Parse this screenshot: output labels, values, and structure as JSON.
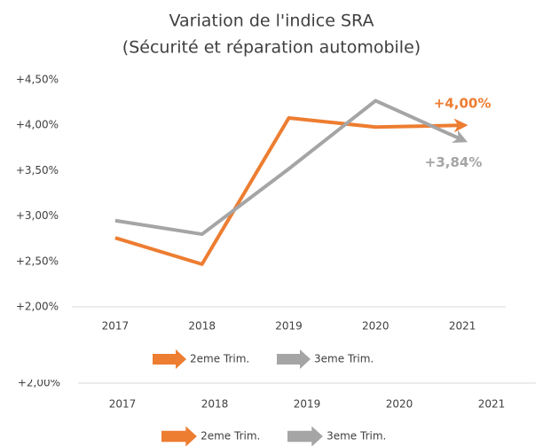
{
  "chart_data": {
    "type": "line",
    "title": "Variation de l'indice SRA",
    "subtitle": "(Sécurité et réparation automobile)",
    "categories": [
      "2017",
      "2018",
      "2019",
      "2020",
      "2021"
    ],
    "series": [
      {
        "name": "2eme Trim.",
        "color": "#ED7D31",
        "values": [
          2.76,
          2.47,
          4.08,
          3.98,
          4.0
        ],
        "value_labels": [
          null,
          null,
          null,
          null,
          "+4,00%"
        ]
      },
      {
        "name": "3eme Trim.",
        "color": "#A5A5A5",
        "values": [
          2.95,
          2.8,
          3.52,
          4.27,
          3.84
        ],
        "value_labels": [
          null,
          null,
          null,
          null,
          "+3,84%"
        ]
      }
    ],
    "ylim": [
      2.0,
      4.5
    ],
    "yticks": [
      {
        "value": 2.0,
        "label": "+2,00%"
      },
      {
        "value": 2.5,
        "label": "+2,50%"
      },
      {
        "value": 3.0,
        "label": "+3,00%"
      },
      {
        "value": 3.5,
        "label": "+3,50%"
      },
      {
        "value": 4.0,
        "label": "+4,00%"
      },
      {
        "value": 4.5,
        "label": "+4,50%"
      }
    ],
    "grid": false,
    "legend": "bottom"
  }
}
